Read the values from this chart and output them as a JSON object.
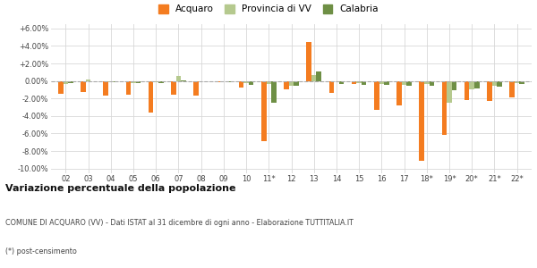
{
  "categories": [
    "02",
    "03",
    "04",
    "05",
    "06",
    "07",
    "08",
    "09",
    "10",
    "11*",
    "12",
    "13",
    "14",
    "15",
    "16",
    "17",
    "18*",
    "19*",
    "20*",
    "21*",
    "22*"
  ],
  "acquaro": [
    -1.5,
    -1.3,
    -1.7,
    -1.6,
    -3.6,
    -1.6,
    -1.7,
    -0.1,
    -0.7,
    -6.9,
    -1.0,
    4.5,
    -1.4,
    -0.3,
    -3.3,
    -2.8,
    -9.1,
    -6.2,
    -2.2,
    -2.3,
    -1.9
  ],
  "provincia": [
    -0.3,
    0.2,
    -0.1,
    -0.2,
    -0.1,
    0.6,
    0.0,
    0.0,
    -0.2,
    -0.3,
    -0.5,
    0.7,
    0.0,
    -0.2,
    -0.3,
    -0.4,
    -0.3,
    -2.5,
    -1.0,
    -0.5,
    -0.2
  ],
  "calabria": [
    -0.2,
    0.0,
    -0.1,
    -0.2,
    -0.2,
    0.1,
    0.0,
    -0.1,
    -0.4,
    -2.5,
    -0.5,
    1.1,
    -0.3,
    -0.4,
    -0.4,
    -0.5,
    -0.5,
    -1.1,
    -0.9,
    -0.6,
    -0.3
  ],
  "acquaro_color": "#f47c20",
  "provincia_color": "#b5c98e",
  "calabria_color": "#6e8f45",
  "bg_color": "#ffffff",
  "grid_color": "#d8d8d8",
  "ylim": [
    -10.5,
    6.5
  ],
  "yticks": [
    -10.0,
    -8.0,
    -6.0,
    -4.0,
    -2.0,
    0.0,
    2.0,
    4.0,
    6.0
  ],
  "ytick_labels": [
    "-10.00%",
    "-8.00%",
    "-6.00%",
    "-4.00%",
    "-2.00%",
    "0.00%",
    "+2.00%",
    "+4.00%",
    "+6.00%"
  ],
  "title_bold": "Variazione percentuale della popolazione",
  "subtitle": "COMUNE DI ACQUARO (VV) - Dati ISTAT al 31 dicembre di ogni anno - Elaborazione TUTTITALIA.IT",
  "footnote": "(*) post-censimento",
  "legend_labels": [
    "Acquaro",
    "Provincia di VV",
    "Calabria"
  ]
}
